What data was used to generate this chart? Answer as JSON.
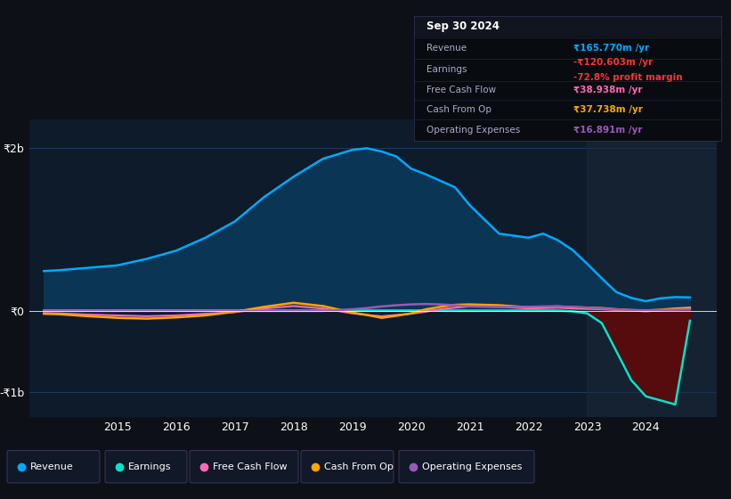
{
  "background_color": "#0d1117",
  "plot_bg_color": "#0d1b2a",
  "grid_color": "#1e3a5f",
  "title_box": {
    "date": "Sep 30 2024",
    "revenue_label": "Revenue",
    "revenue_value": "₹165.770m /yr",
    "revenue_color": "#00aaff",
    "earnings_label": "Earnings",
    "earnings_value": "-₹120.603m /yr",
    "earnings_color": "#ff3333",
    "profit_margin": "-72.8% profit margin",
    "profit_margin_color": "#ff3333",
    "fcf_label": "Free Cash Flow",
    "fcf_value": "₹38.938m /yr",
    "fcf_color": "#ff69b4",
    "cashop_label": "Cash From Op",
    "cashop_value": "₹37.738m /yr",
    "cashop_color": "#ffa500",
    "opex_label": "Operating Expenses",
    "opex_value": "₹16.891m /yr",
    "opex_color": "#9b59b6"
  },
  "yticks_labels": [
    "₹2b",
    "₹0",
    "-₹1b"
  ],
  "yticks_values": [
    2000,
    0,
    -1000
  ],
  "years": [
    2013.75,
    2014.0,
    2014.5,
    2015.0,
    2015.5,
    2016.0,
    2016.5,
    2017.0,
    2017.5,
    2018.0,
    2018.5,
    2019.0,
    2019.25,
    2019.5,
    2019.75,
    2020.0,
    2020.25,
    2020.5,
    2020.75,
    2021.0,
    2021.5,
    2022.0,
    2022.25,
    2022.5,
    2022.75,
    2023.0,
    2023.25,
    2023.5,
    2023.75,
    2024.0,
    2024.25,
    2024.5,
    2024.75
  ],
  "revenue": [
    490,
    500,
    530,
    560,
    640,
    740,
    900,
    1100,
    1400,
    1650,
    1870,
    1980,
    2000,
    1960,
    1900,
    1750,
    1680,
    1600,
    1520,
    1300,
    950,
    900,
    950,
    870,
    750,
    580,
    400,
    230,
    160,
    120,
    155,
    170,
    166
  ],
  "earnings": [
    5,
    5,
    5,
    5,
    5,
    5,
    5,
    5,
    5,
    5,
    5,
    5,
    5,
    5,
    5,
    5,
    5,
    5,
    5,
    5,
    5,
    5,
    5,
    5,
    -5,
    -30,
    -150,
    -500,
    -850,
    -1050,
    -1100,
    -1150,
    -121
  ],
  "free_cash_flow": [
    -25,
    -30,
    -45,
    -55,
    -65,
    -55,
    -35,
    -15,
    30,
    60,
    30,
    -30,
    -50,
    -65,
    -50,
    -35,
    -10,
    20,
    40,
    55,
    50,
    30,
    35,
    40,
    30,
    25,
    20,
    10,
    5,
    -5,
    5,
    20,
    39
  ],
  "cash_from_op": [
    -35,
    -40,
    -65,
    -85,
    -95,
    -80,
    -55,
    -10,
    50,
    100,
    60,
    -20,
    -50,
    -85,
    -60,
    -30,
    20,
    50,
    75,
    80,
    70,
    45,
    50,
    55,
    45,
    40,
    35,
    20,
    10,
    5,
    15,
    30,
    38
  ],
  "operating_expenses": [
    0,
    0,
    0,
    0,
    0,
    0,
    0,
    0,
    0,
    0,
    0,
    20,
    35,
    55,
    70,
    80,
    85,
    80,
    70,
    55,
    50,
    50,
    55,
    55,
    50,
    40,
    30,
    20,
    10,
    8,
    10,
    14,
    17
  ],
  "revenue_color": "#00aaff",
  "revenue_fill_color": "#0a3555",
  "earnings_color": "#00e5cc",
  "earnings_neg_fill": "#5a0a0a",
  "fcf_color": "#ff69b4",
  "cashop_color": "#ffa500",
  "opex_color": "#9b59b6",
  "legend_items": [
    "Revenue",
    "Earnings",
    "Free Cash Flow",
    "Cash From Op",
    "Operating Expenses"
  ],
  "legend_colors": [
    "#00aaff",
    "#00e5cc",
    "#ff69b4",
    "#ffa500",
    "#9b59b6"
  ],
  "xmin": 2013.5,
  "xmax": 2025.2,
  "ymin": -1300,
  "ymax": 2350
}
